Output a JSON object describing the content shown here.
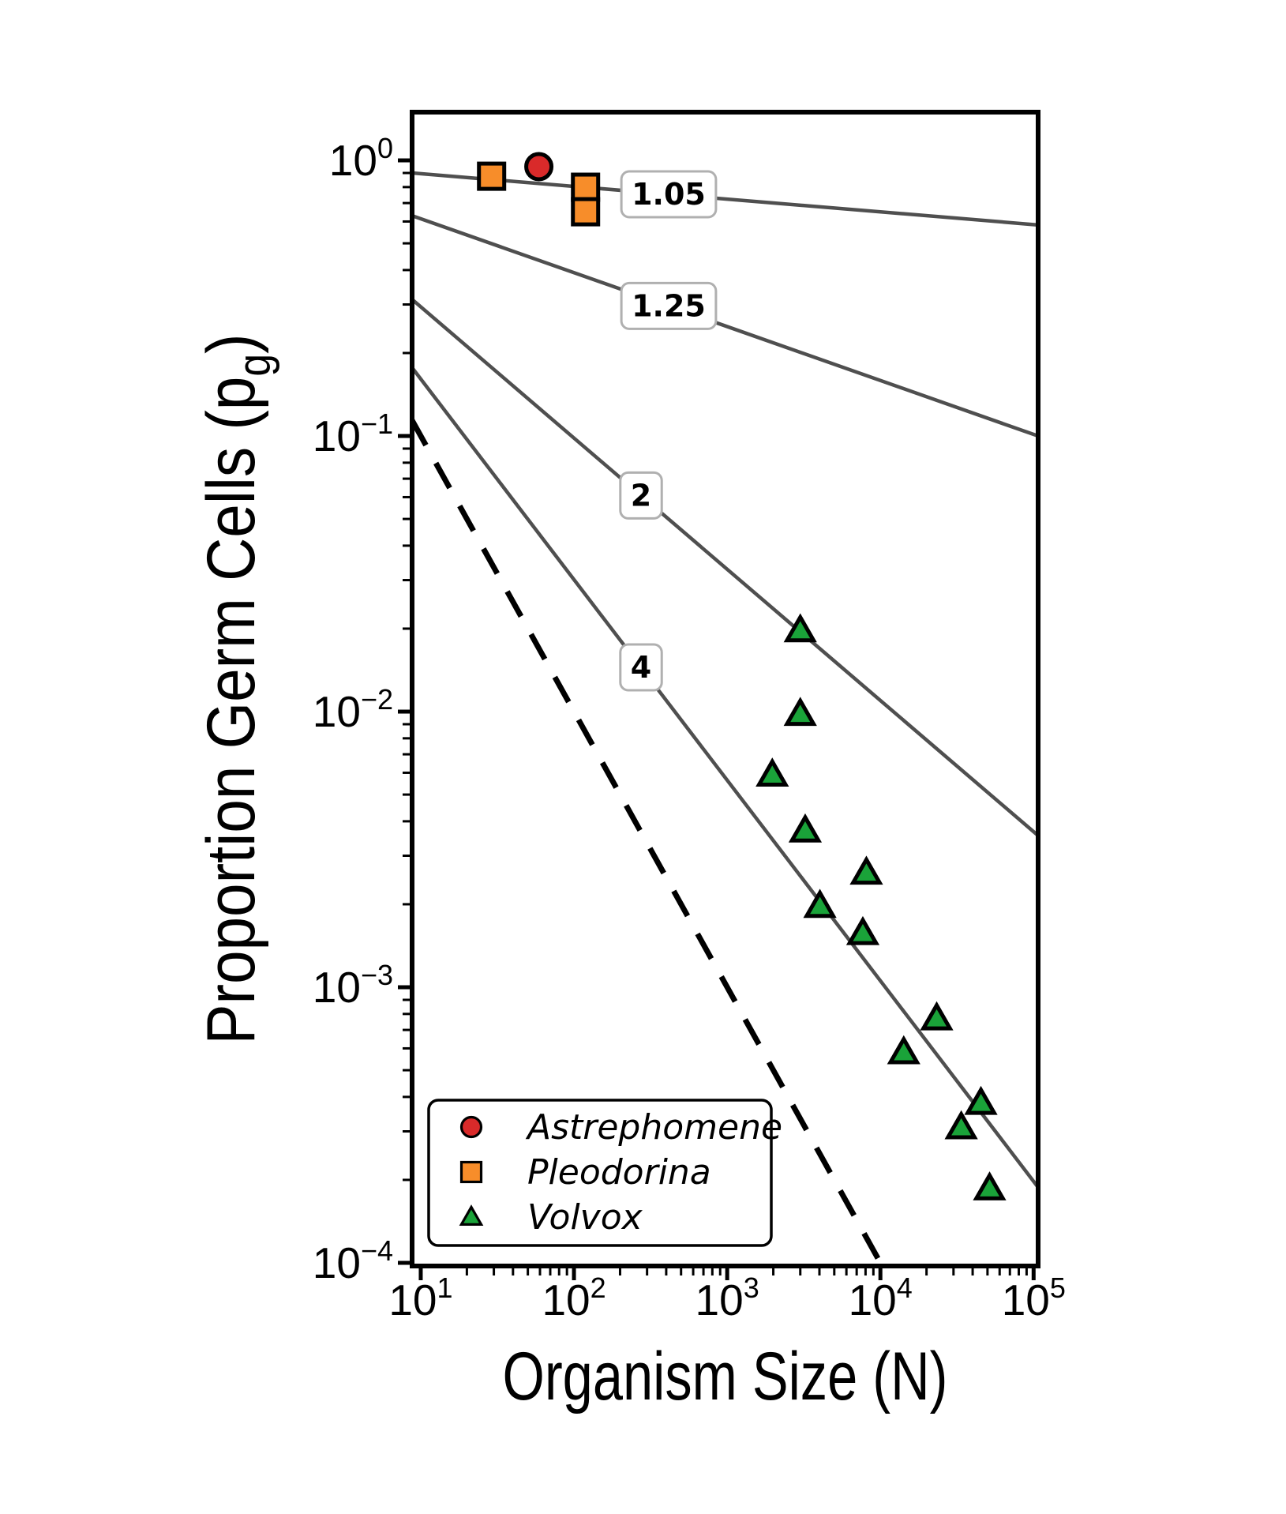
{
  "figure": {
    "background": "#ffffff",
    "axis_color": "#000000",
    "ref_line_color": "#4f4f4f",
    "label_box_border": "#b0b0b0",
    "label_box_fill": "#ffffff"
  },
  "chart_data": {
    "type": "scatter",
    "x_scale": "log",
    "y_scale": "log",
    "grid": false,
    "xlabel": "Organism Size (N)",
    "ylabel_pre": "Proportion Germ Cells (p",
    "ylabel_sub": "g",
    "ylabel_post": ")",
    "xlim": [
      8.78,
      107000
    ],
    "ylim": [
      9.74e-05,
      1.496
    ],
    "x_tick_base": "10",
    "x_tick_exponents": [
      "1",
      "2",
      "3",
      "4",
      "5"
    ],
    "y_tick_base": "10",
    "y_tick_exponents": [
      "0",
      "−1",
      "−2",
      "−3",
      "−4"
    ],
    "series": [
      {
        "name": "Astrephomene",
        "marker": "circle",
        "color": "#d92a2a",
        "edge_color": "#000000",
        "points": [
          [
            59,
            0.949
          ]
        ]
      },
      {
        "name": "Pleodorina",
        "marker": "square",
        "color": "#f78d2a",
        "edge_color": "#000000",
        "points": [
          [
            29,
            0.876
          ],
          [
            119,
            0.799
          ],
          [
            119,
            0.651
          ]
        ]
      },
      {
        "name": "Volvox",
        "marker": "triangle",
        "color": "#1aa339",
        "edge_color": "#000000",
        "points": [
          [
            3000,
            0.0197
          ],
          [
            3000,
            0.0098
          ],
          [
            1970,
            0.0059
          ],
          [
            3230,
            0.0037
          ],
          [
            8100,
            0.0026
          ],
          [
            4030,
            0.00197
          ],
          [
            7680,
            0.00157
          ],
          [
            23300,
            0.00077
          ],
          [
            14200,
            0.00058
          ],
          [
            45300,
            0.00038
          ],
          [
            33700,
            0.00031
          ],
          [
            51600,
            0.000186
          ]
        ]
      }
    ],
    "ref_lines": [
      {
        "label": "1.05",
        "x1": 8.78,
        "y1": 0.9,
        "x2": 107000,
        "y2": 0.583,
        "label_x": 415
      },
      {
        "label": "1.25",
        "x1": 8.78,
        "y1": 0.63,
        "x2": 107000,
        "y2": 0.1,
        "label_x": 415
      },
      {
        "label": "2",
        "x1": 8.78,
        "y1": 0.313,
        "x2": 107000,
        "y2": 0.00355,
        "label_x": 274
      },
      {
        "label": "4",
        "x1": 8.78,
        "y1": 0.177,
        "x2": 107000,
        "y2": 0.000188,
        "label_x": 274
      }
    ],
    "dashed_line": {
      "x1": 8.78,
      "y1": 0.114,
      "x2": 10270,
      "y2": 9.74e-05
    },
    "legend": {
      "position": "lower-left",
      "items": [
        "Astrephomene",
        "Pleodorina",
        "Volvox"
      ]
    }
  }
}
